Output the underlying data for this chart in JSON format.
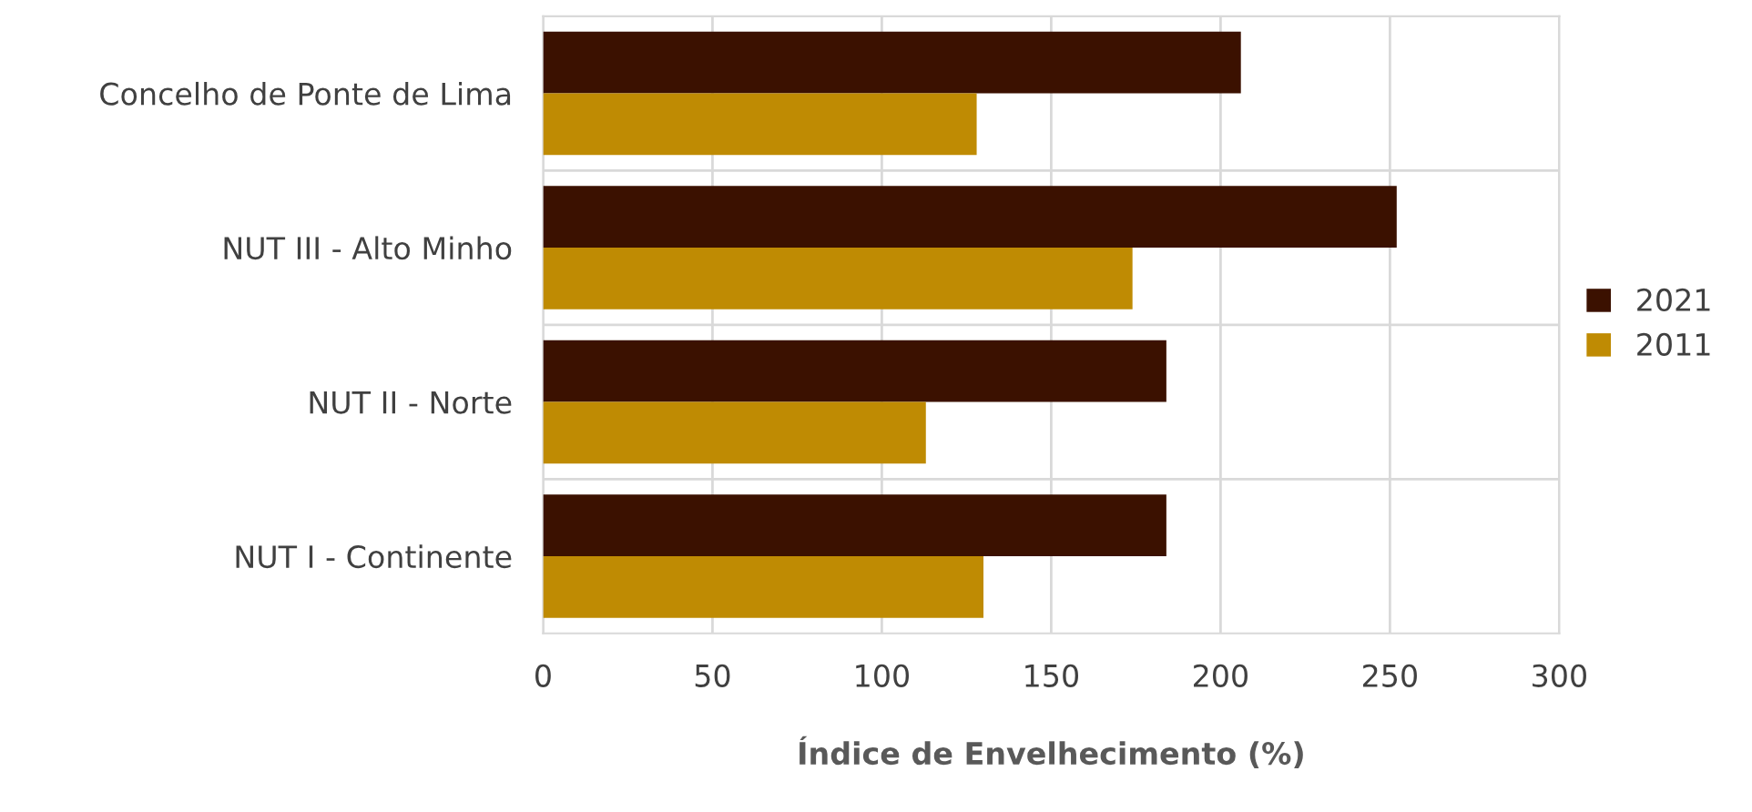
{
  "chart_data": {
    "type": "bar",
    "orientation": "horizontal",
    "xlabel": "Índice de Envelhecimento (%)",
    "categories": [
      "Concelho de Ponte de Lima",
      "NUT III - Alto Minho",
      "NUT II - Norte",
      "NUT I - Continente"
    ],
    "series": [
      {
        "name": "2021",
        "color": "#3b1100",
        "values": [
          206,
          252,
          184,
          184
        ]
      },
      {
        "name": "2011",
        "color": "#bf8b03",
        "values": [
          128,
          174,
          113,
          130
        ]
      }
    ],
    "xlim": [
      0,
      300
    ],
    "xticks": [
      0,
      50,
      100,
      150,
      200,
      250,
      300
    ],
    "grid": true,
    "legend": "right"
  }
}
